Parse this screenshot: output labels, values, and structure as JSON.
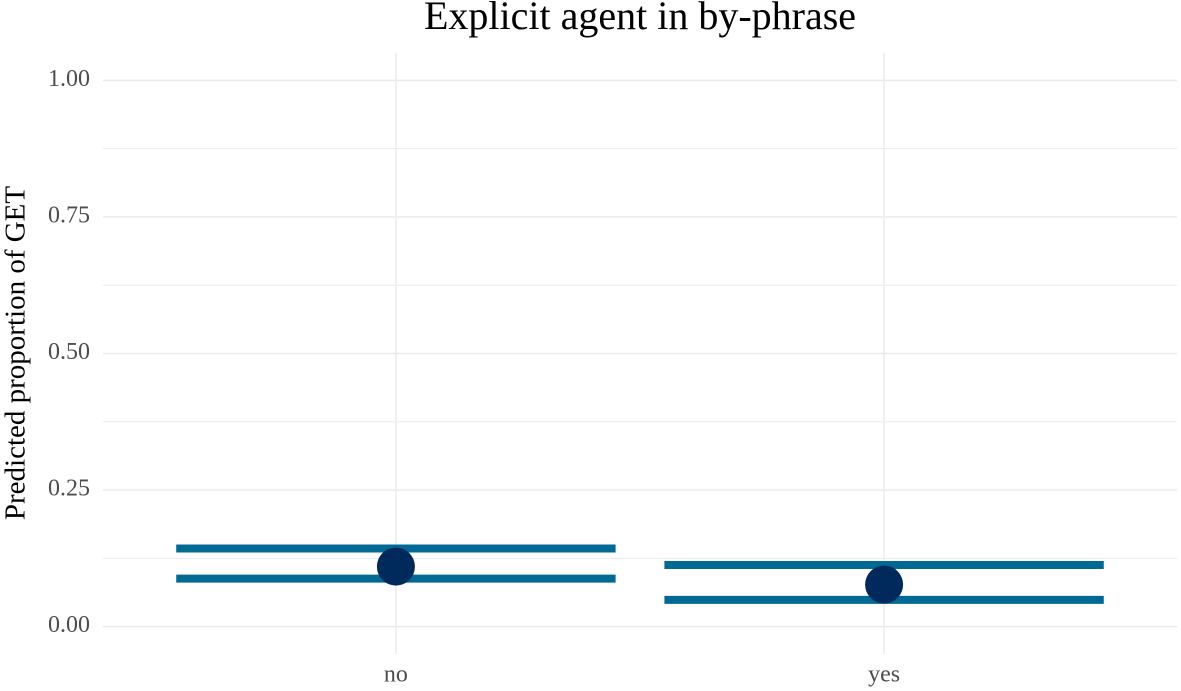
{
  "chart_data": {
    "type": "errorbar",
    "title": "Explicit agent in by-phrase",
    "y_label": "Predicted proportion of GET",
    "categories": [
      "no",
      "yes"
    ],
    "values": [
      0.11,
      0.077
    ],
    "lower": [
      0.088,
      0.049
    ],
    "upper": [
      0.143,
      0.113
    ],
    "point_color": "#002a5c",
    "bar_color": "#006994",
    "ylim": [
      -0.05,
      1.05
    ],
    "yticks": [
      {
        "value": 0,
        "label": "0.00"
      },
      {
        "value": 0.25,
        "label": "0.25"
      },
      {
        "value": 0.5,
        "label": "0.50"
      },
      {
        "value": 0.75,
        "label": "0.75"
      },
      {
        "value": 1,
        "label": "1.00"
      }
    ],
    "minor_yticks": [
      0.125,
      0.375,
      0.625,
      0.875
    ],
    "grid": true
  }
}
